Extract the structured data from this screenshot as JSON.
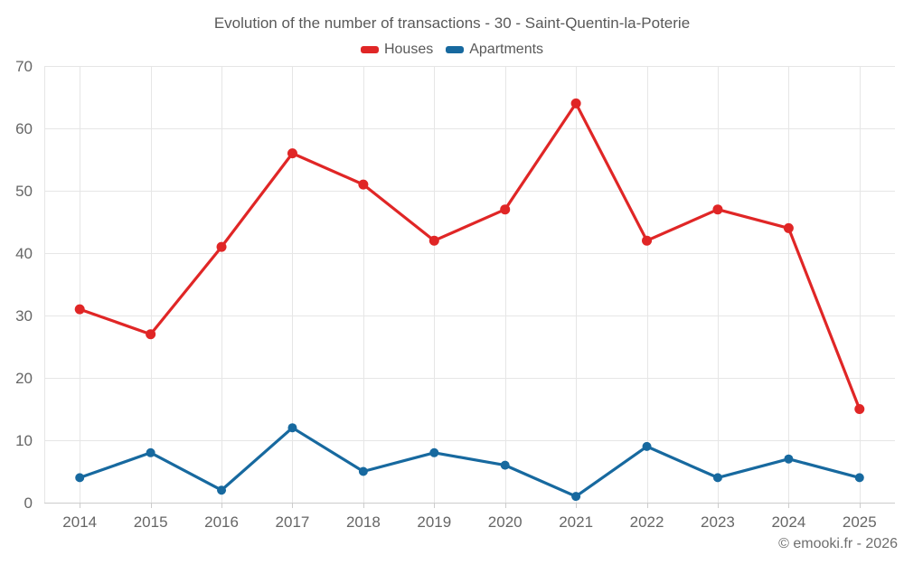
{
  "chart": {
    "title": "Evolution of the number of transactions - 30 - Saint-Quentin-la-Poterie",
    "copyright": "© emooki.fr - 2026"
  },
  "chart_data": {
    "type": "line",
    "title": "Evolution of the number of transactions - 30 - Saint-Quentin-la-Poterie",
    "categories": [
      "2014",
      "2015",
      "2016",
      "2017",
      "2018",
      "2019",
      "2020",
      "2021",
      "2022",
      "2023",
      "2024",
      "2025"
    ],
    "series": [
      {
        "name": "Houses",
        "color": "#e02626",
        "values": [
          31,
          27,
          41,
          56,
          51,
          42,
          47,
          64,
          42,
          47,
          44,
          15
        ]
      },
      {
        "name": "Apartments",
        "color": "#17699f",
        "values": [
          4,
          8,
          2,
          12,
          5,
          8,
          6,
          1,
          9,
          4,
          7,
          4
        ]
      }
    ],
    "xlabel": "",
    "ylabel": "",
    "ylim": [
      0,
      70
    ],
    "ytick_step": 10,
    "grid": true,
    "legend_position": "top",
    "colors": {
      "grid_line": "#e6e6e6",
      "axis_line": "#cccccc",
      "tick_mark": "#cccccc",
      "axis_label": "#666666",
      "title_text": "#595959"
    }
  }
}
